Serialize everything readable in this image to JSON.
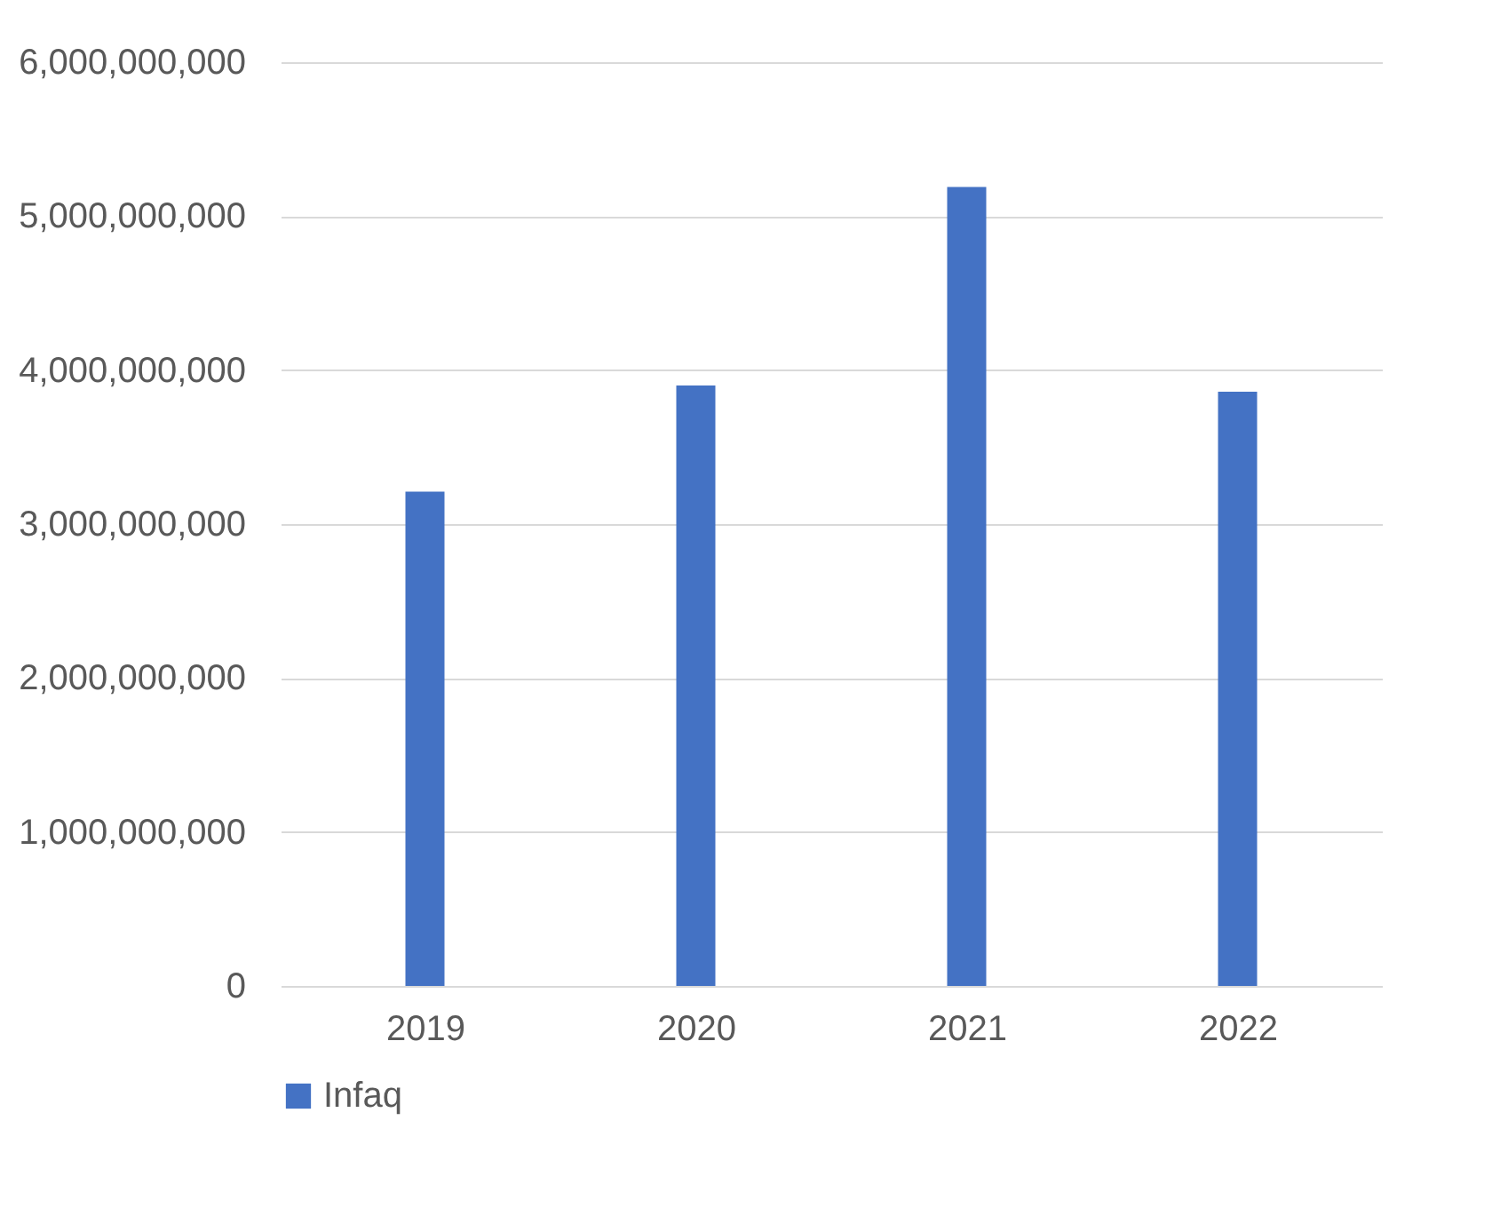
{
  "chart_data": {
    "type": "bar",
    "categories": [
      "2019",
      "2020",
      "2021",
      "2022"
    ],
    "series": [
      {
        "name": "Infaq",
        "color": "#4472c4",
        "values": [
          3210000000,
          3900000000,
          5190000000,
          3860000000
        ]
      }
    ],
    "ylim": [
      0,
      6000000000
    ],
    "yticks": [
      0,
      {
        "value": 1000000000,
        "label": "1,000,000,000"
      },
      {
        "value": 2000000000,
        "label": "2,000,000,000"
      },
      {
        "value": 3000000000,
        "label": "3,000,000,000"
      },
      {
        "value": 4000000000,
        "label": "4,000,000,000"
      },
      {
        "value": 5000000000,
        "label": "5,000,000,000"
      },
      {
        "value": 6000000000,
        "label": "6,000,000,000"
      }
    ],
    "grid": "y",
    "legend": "bottom"
  }
}
